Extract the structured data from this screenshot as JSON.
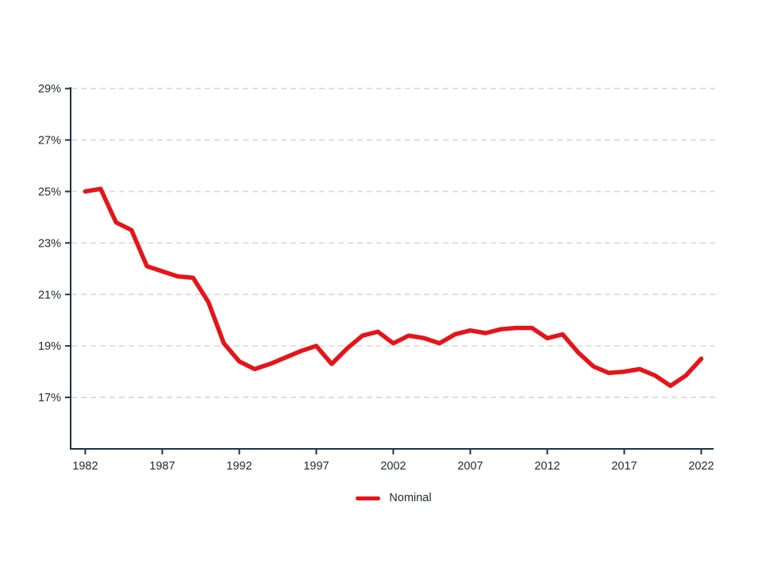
{
  "chart_data": {
    "type": "line",
    "title": "",
    "xlabel": "",
    "ylabel": "",
    "x": [
      1982,
      1983,
      1984,
      1985,
      1986,
      1987,
      1988,
      1989,
      1990,
      1991,
      1992,
      1993,
      1994,
      1995,
      1996,
      1997,
      1998,
      1999,
      2000,
      2001,
      2002,
      2003,
      2004,
      2005,
      2006,
      2007,
      2008,
      2009,
      2010,
      2011,
      2012,
      2013,
      2014,
      2015,
      2016,
      2017,
      2018,
      2019,
      2020,
      2021,
      2022
    ],
    "series": [
      {
        "name": "Nominal",
        "color": "#e61419",
        "values": [
          25.0,
          25.1,
          23.8,
          23.5,
          22.1,
          21.9,
          21.7,
          21.65,
          20.7,
          19.1,
          18.4,
          18.1,
          18.3,
          18.55,
          18.8,
          19.0,
          18.3,
          18.9,
          19.4,
          19.55,
          19.1,
          19.4,
          19.3,
          19.1,
          19.45,
          19.6,
          19.5,
          19.65,
          19.7,
          19.7,
          19.3,
          19.45,
          18.75,
          18.2,
          17.95,
          18.0,
          18.1,
          17.85,
          17.45,
          17.85,
          18.5
        ]
      }
    ],
    "x_ticks": [
      1982,
      1987,
      1992,
      1997,
      2002,
      2007,
      2012,
      2017,
      2022
    ],
    "x_tick_labels": [
      "1982",
      "1987",
      "1992",
      "1997",
      "2002",
      "2007",
      "2012",
      "2017",
      "2022"
    ],
    "y_ticks": [
      17,
      19,
      21,
      23,
      25,
      27,
      29
    ],
    "y_tick_labels": [
      "17%",
      "19%",
      "21%",
      "23%",
      "25%",
      "27%",
      "29%"
    ],
    "xlim": [
      1981.05,
      2022.8
    ],
    "ylim": [
      15,
      29.05
    ],
    "grid": "horizontal-dashed",
    "legend_position": "bottom-center"
  },
  "legend": {
    "items": [
      {
        "label": "Nominal",
        "color": "#e61419"
      }
    ]
  },
  "colors": {
    "background": "#ffffff",
    "line": "#e61419",
    "axis": "#1c3442",
    "grid": "#d9d9d9",
    "text": "#212b33"
  }
}
